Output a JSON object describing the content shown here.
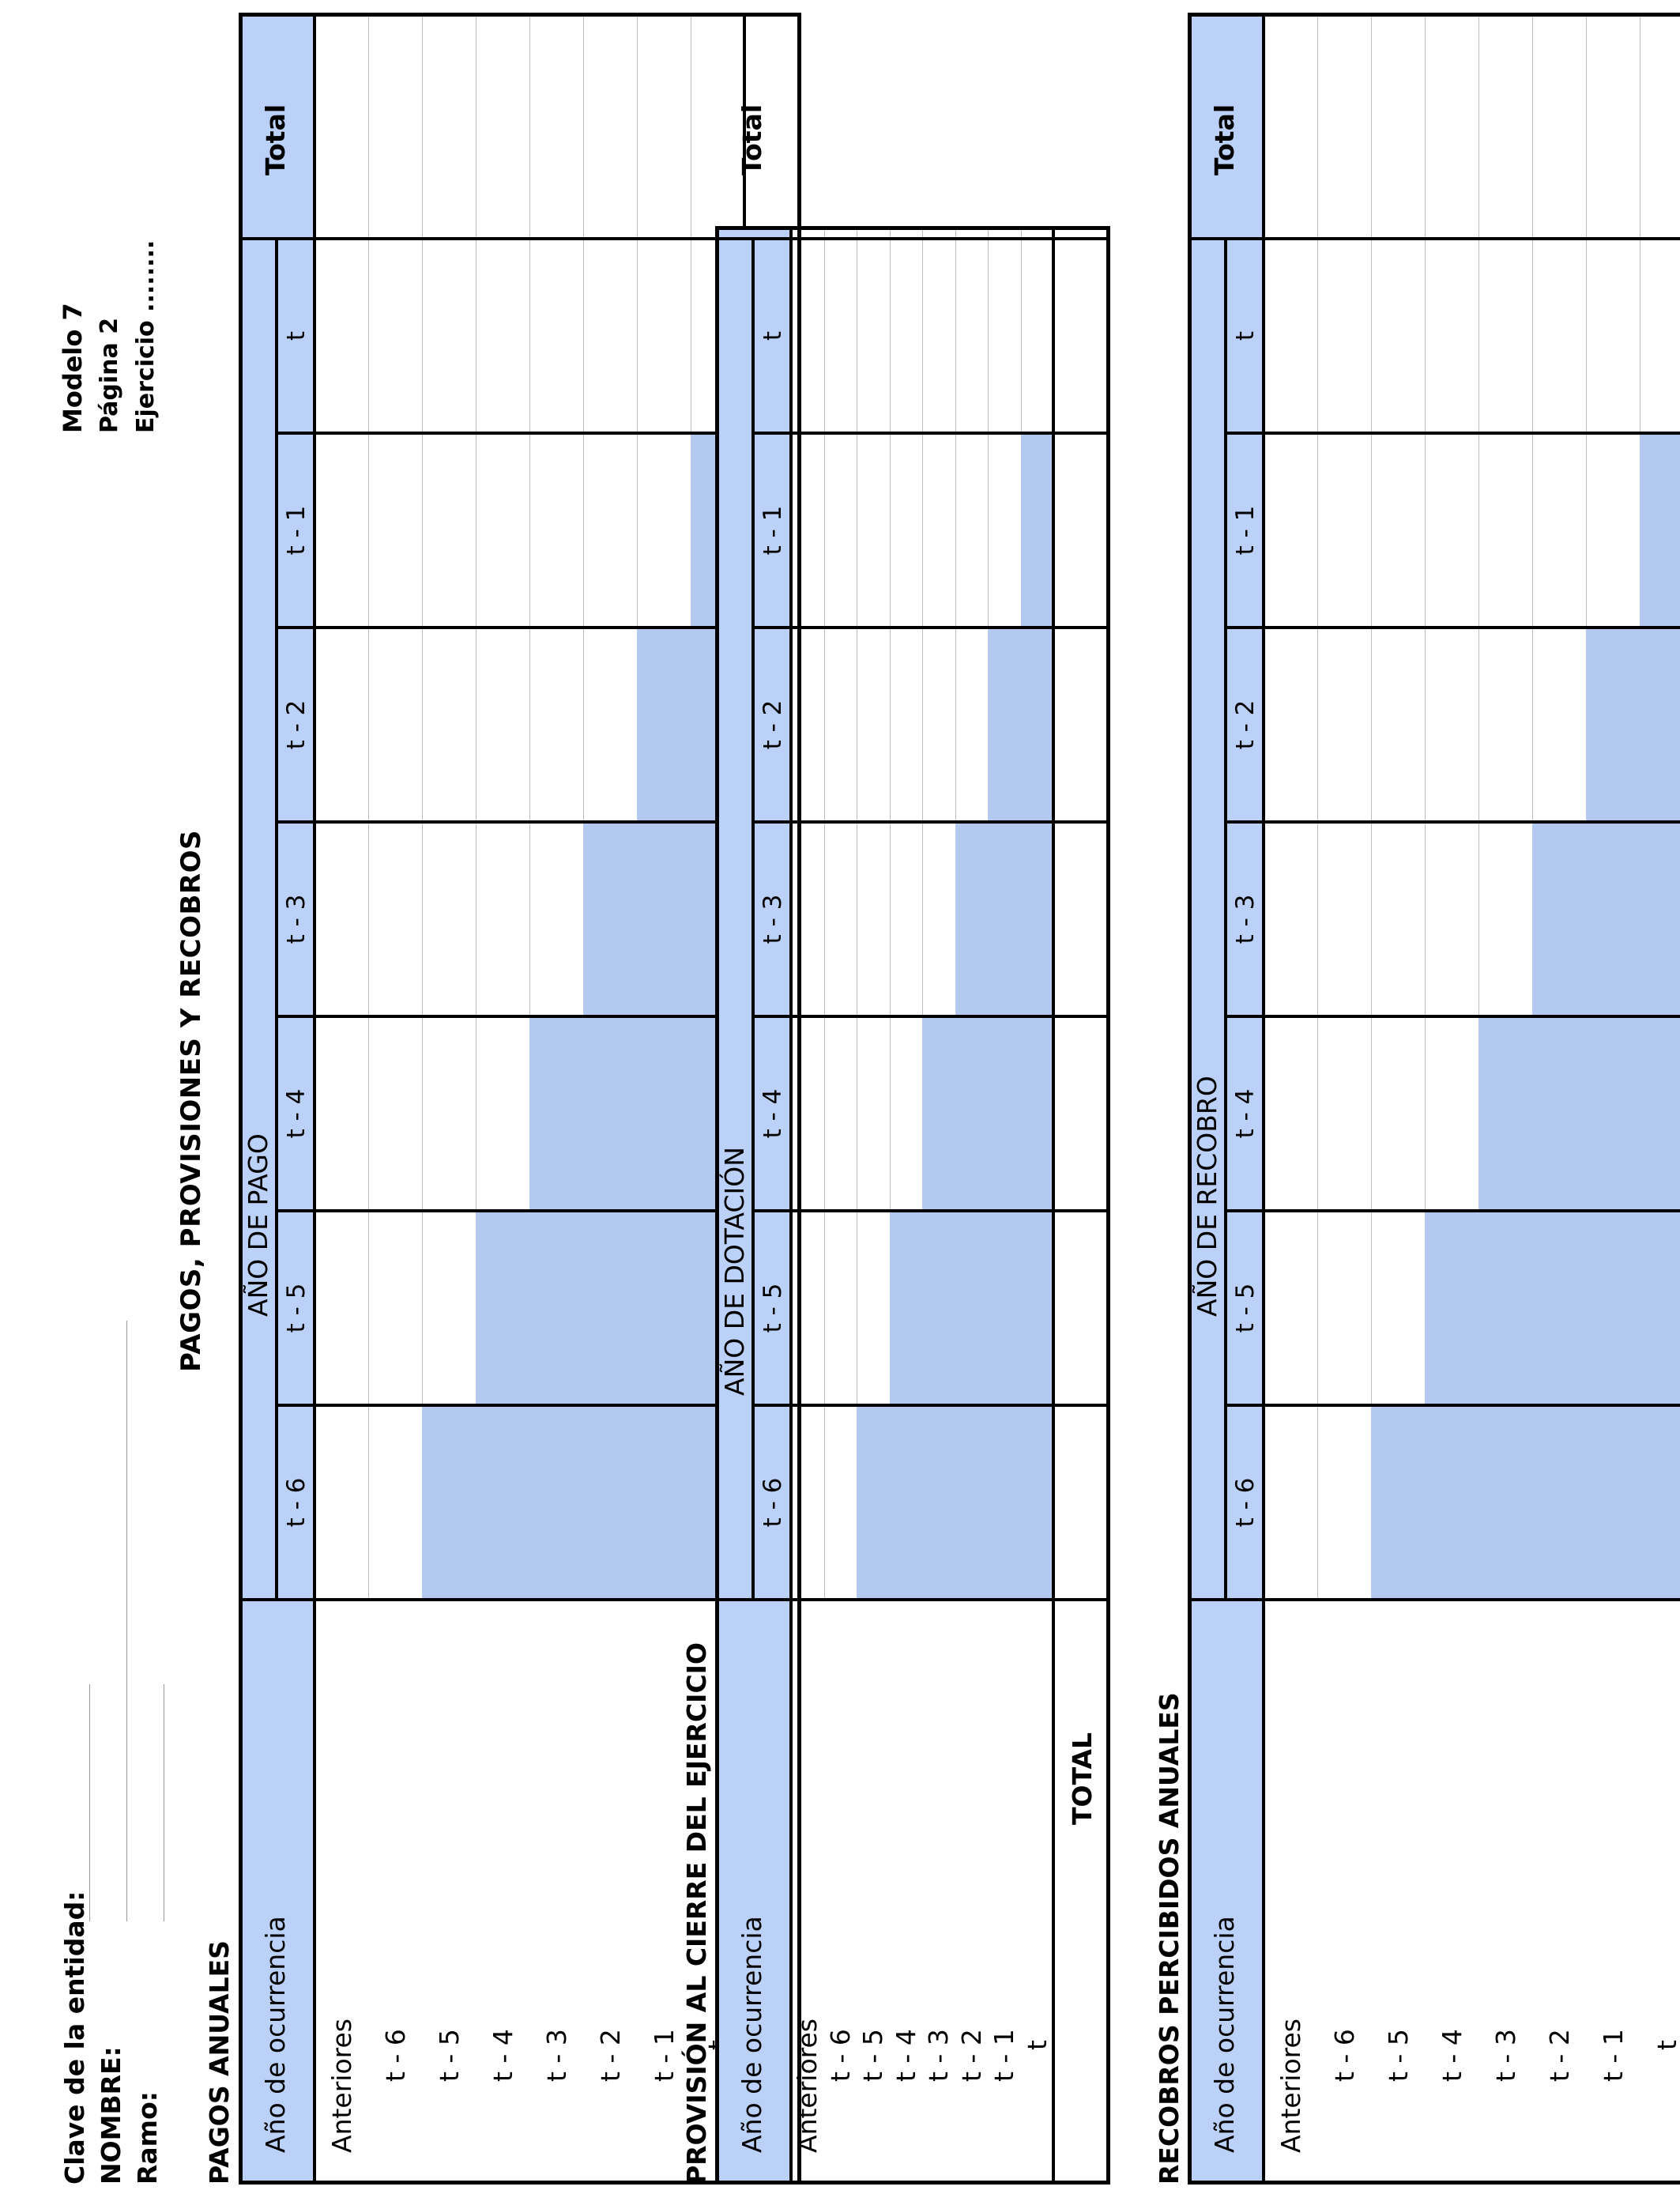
{
  "header": {
    "clave_label": "Clave de la entidad:",
    "nombre_label": "NOMBRE:",
    "ramo_label": "Ramo:",
    "modelo": "Modelo 7",
    "pagina": "Página 2",
    "ejercicio": "Ejercicio ........"
  },
  "main_title": "PAGOS, PROVISIONES Y RECOBROS",
  "row_labels": [
    "Anteriores",
    "t - 6",
    "t - 5",
    "t - 4",
    "t - 3",
    "t - 2",
    "t - 1",
    "t"
  ],
  "year_columns": [
    "t - 6",
    "t - 5",
    "t - 4",
    "t - 3",
    "t - 2",
    "t - 1",
    "t"
  ],
  "common": {
    "ocurrencia_label": "Año de ocurrencia",
    "total_row_label": "TOTAL",
    "total_col_label": "Total"
  },
  "sections": [
    {
      "title": "PAGOS ANUALES",
      "group_label": "AÑO DE PAGO"
    },
    {
      "title": "PROVISIÓN AL CIERRE DEL EJERCICIO",
      "group_label": "AÑO DE DOTACIÓN"
    },
    {
      "title": "RECOBROS PERCIBIDOS ANUALES",
      "group_label": "AÑO DE RECOBRO"
    }
  ],
  "colors": {
    "header_fill": "#bcd1f7",
    "shaded_cells": "#b3c9ef"
  }
}
